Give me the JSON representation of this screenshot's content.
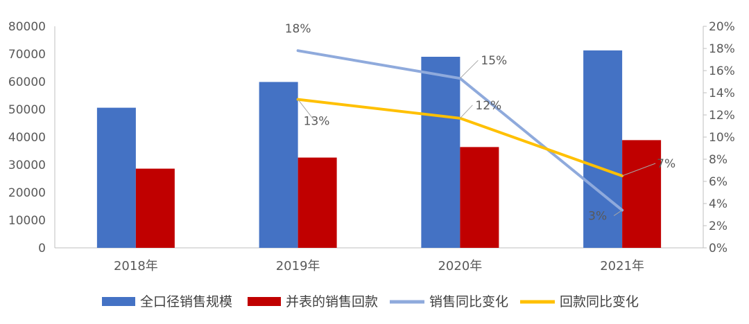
{
  "chart_data": {
    "type": "bar",
    "categories": [
      "2018年",
      "2019年",
      "2020年",
      "2021年"
    ],
    "series": [
      {
        "name": "全口径销售规模",
        "type": "bar",
        "axis": "left",
        "color": "#4472C4",
        "values": [
          50600,
          59900,
          69000,
          71300
        ]
      },
      {
        "name": "并表的销售回款",
        "type": "bar",
        "axis": "left",
        "color": "#C00000",
        "values": [
          28600,
          32600,
          36400,
          38900
        ]
      },
      {
        "name": "销售同比变化",
        "type": "line",
        "axis": "right",
        "color": "#8FAADC",
        "values": [
          null,
          0.178,
          0.153,
          0.034
        ],
        "labels": [
          "",
          "18%",
          "15%",
          "3%"
        ]
      },
      {
        "name": "回款同比变化",
        "type": "line",
        "axis": "right",
        "color": "#FFC000",
        "values": [
          null,
          0.134,
          0.117,
          0.065
        ],
        "labels": [
          "",
          "13%",
          "12%",
          "7%"
        ]
      }
    ],
    "y_left": {
      "min": 0,
      "max": 80000,
      "ticks": [
        "0",
        "10000",
        "20000",
        "30000",
        "40000",
        "50000",
        "60000",
        "70000",
        "80000"
      ]
    },
    "y_right": {
      "min": 0,
      "max": 0.2,
      "ticks": [
        "0%",
        "2%",
        "4%",
        "6%",
        "8%",
        "10%",
        "12%",
        "14%",
        "16%",
        "18%",
        "20%"
      ]
    },
    "grid": false,
    "legend_position": "bottom"
  }
}
